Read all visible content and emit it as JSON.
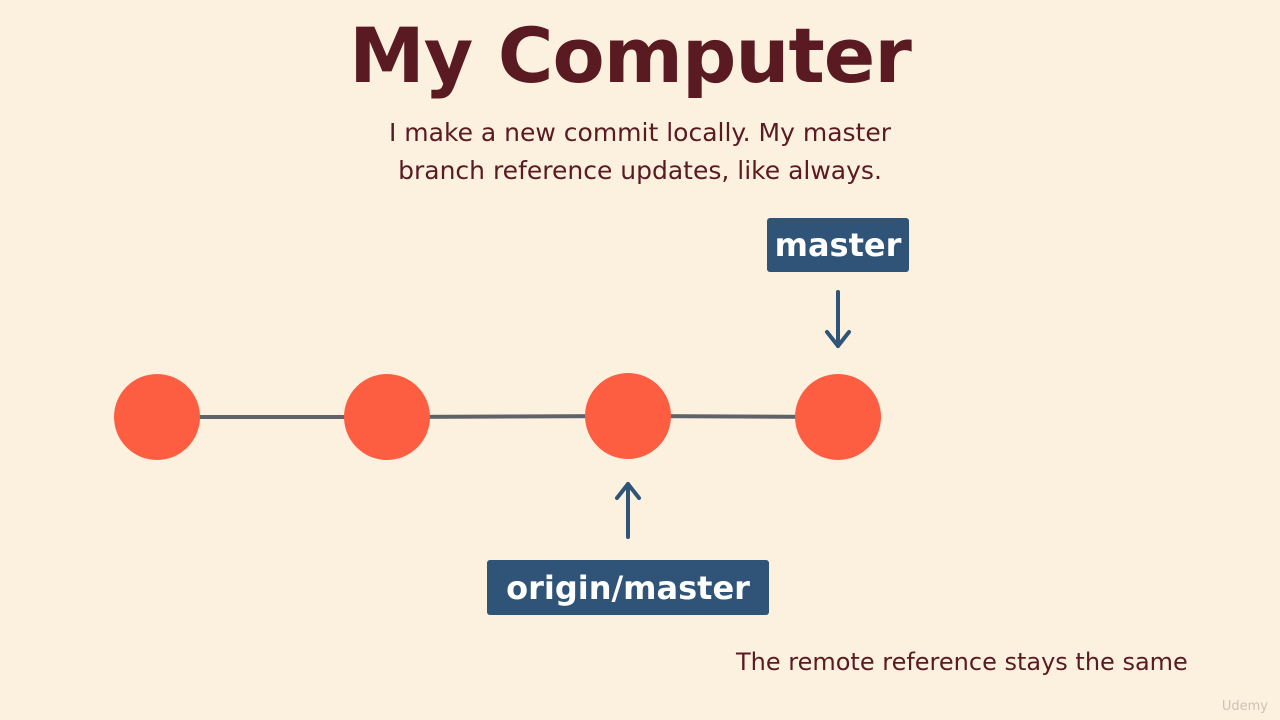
{
  "slide": {
    "title": "My Computer",
    "caption_line1": "I make a new commit locally.  My master",
    "caption_line2": "branch reference updates, like always.",
    "footnote": "The remote reference stays the same",
    "watermark": "Udemy"
  },
  "graph": {
    "commit_count": 4,
    "edges": [
      [
        0,
        1
      ],
      [
        1,
        2
      ],
      [
        2,
        3
      ]
    ],
    "refs": [
      {
        "id": "master",
        "label": "master",
        "points_to_commit": 3,
        "position": "above"
      },
      {
        "id": "origin-master",
        "label": "origin/master",
        "points_to_commit": 2,
        "position": "below"
      }
    ]
  },
  "colors": {
    "background": "#fcf0de",
    "title": "#5a1a22",
    "commit_fill": "#fd5e41",
    "edge": "#5f6369",
    "ref_box": "#2f5478",
    "ref_text": "#ffffff",
    "arrow": "#2f5478"
  }
}
